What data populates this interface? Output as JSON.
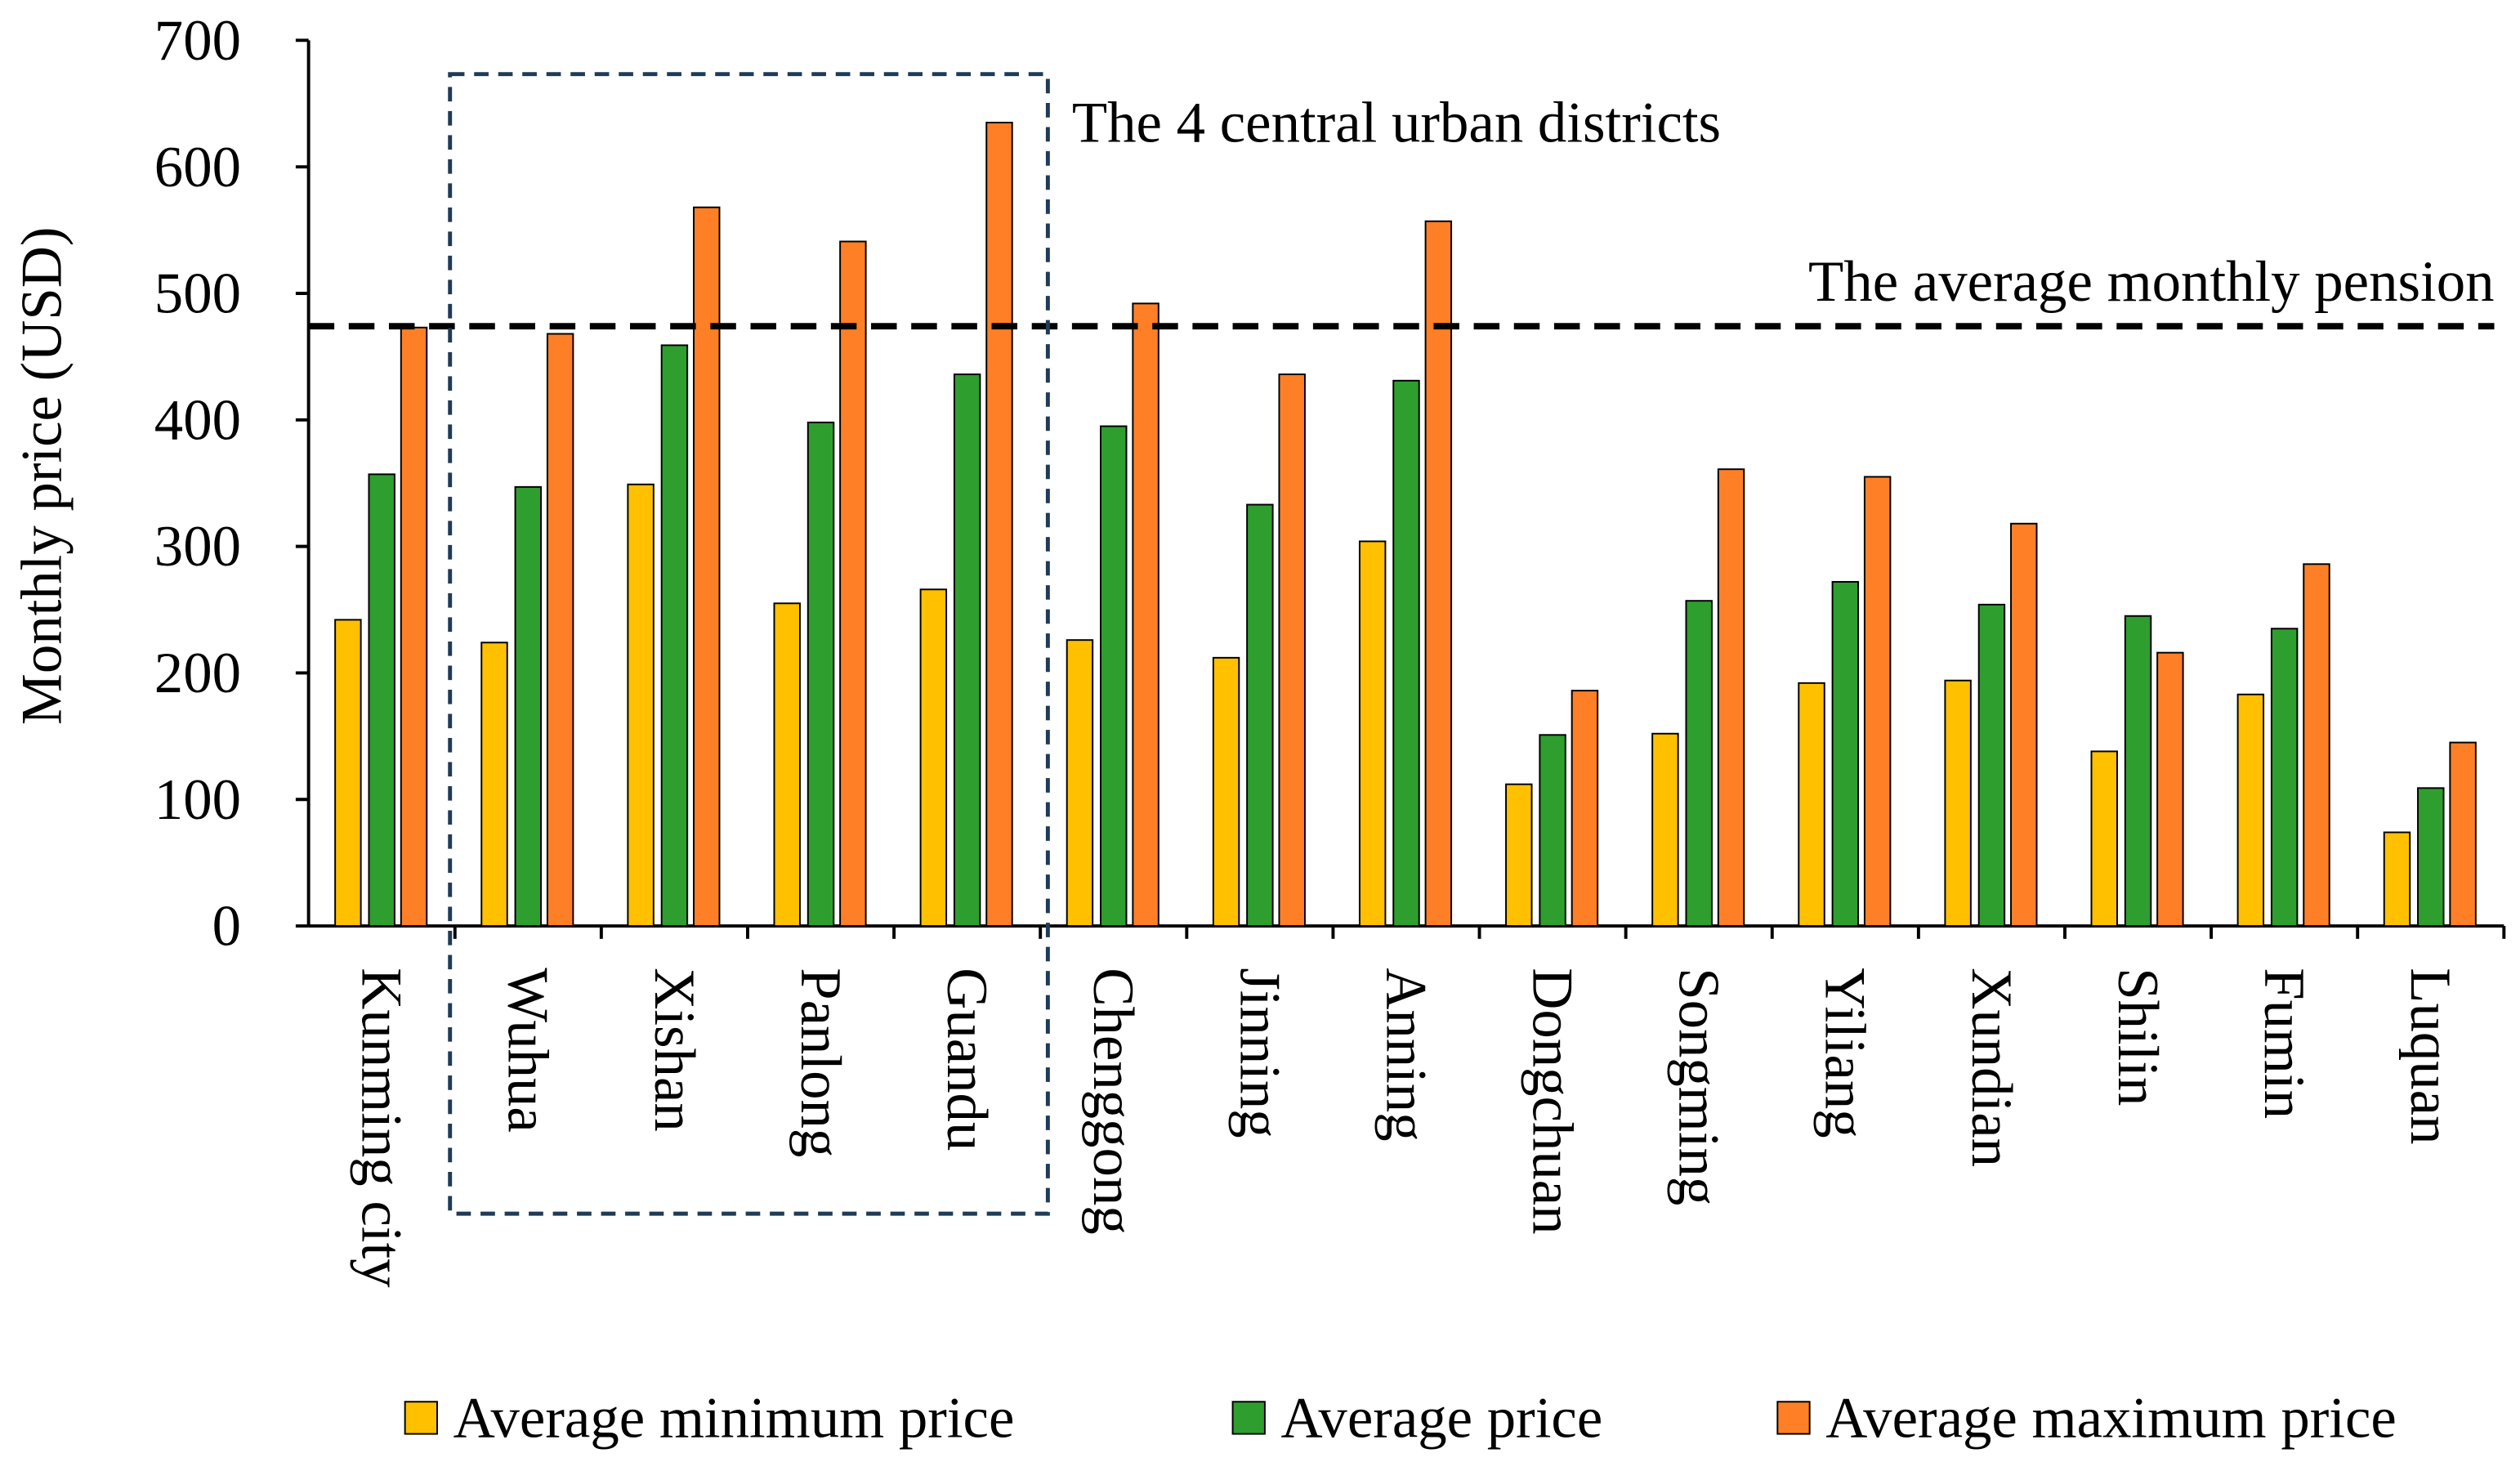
{
  "chart_data": {
    "type": "bar",
    "title": "",
    "xlabel": "",
    "ylabel": "Monthly price (USD)",
    "ylim": [
      0,
      700
    ],
    "yticks": [
      "0",
      "100",
      "200",
      "300",
      "400",
      "500",
      "600",
      "700"
    ],
    "grid": false,
    "legend_position": "bottom",
    "categories": [
      "Kunming city",
      "Wuhua",
      "Xishan",
      "Panlong",
      "Guandu",
      "Chenggong",
      "Jinning",
      "Anning",
      "Dongchuan",
      "Songming",
      "Yiliang",
      "Xundian",
      "Shilin",
      "Fumin",
      "Luquan"
    ],
    "series": [
      {
        "name": "Average minimum price",
        "color": "#FFC000",
        "values": [
          242,
          224,
          349,
          255,
          266,
          226,
          212,
          304,
          112,
          152,
          192,
          194,
          138,
          183,
          74
        ]
      },
      {
        "name": "Average price",
        "color": "#2E9E2E",
        "values": [
          357,
          347,
          459,
          398,
          436,
          395,
          333,
          431,
          151,
          257,
          272,
          254,
          245,
          235,
          109
        ]
      },
      {
        "name": "Average maximum price",
        "color": "#FF7F27",
        "values": [
          473,
          468,
          568,
          541,
          635,
          492,
          436,
          557,
          186,
          361,
          355,
          318,
          216,
          286,
          145
        ]
      }
    ],
    "reference_line": {
      "label": "The average monthly pension",
      "value": 474
    },
    "highlight_box": {
      "label": "The 4 central urban districts",
      "categories": [
        "Wuhua",
        "Xishan",
        "Panlong",
        "Guandu"
      ]
    }
  }
}
